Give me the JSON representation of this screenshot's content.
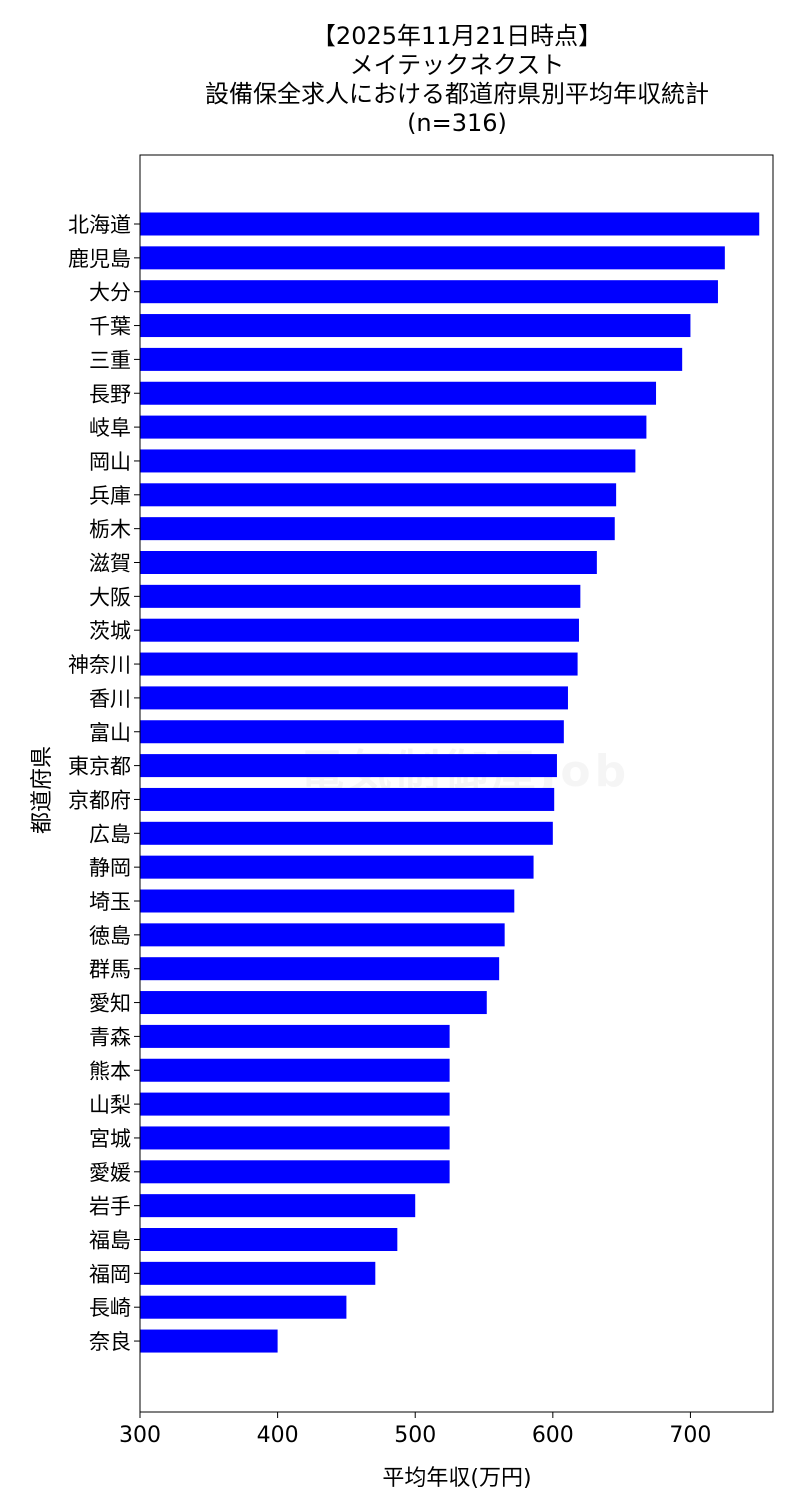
{
  "title_lines": [
    "【2025年11月21日時点】",
    "メイテックネクスト",
    "設備保全求人における都道府県別平均年収統計",
    "(n=316)"
  ],
  "watermark": "電気制御屋Job",
  "colors": {
    "bar": "#0000ff",
    "axis": "#000000",
    "background": "#ffffff"
  },
  "chart_data": {
    "type": "bar",
    "orientation": "horizontal",
    "title": "【2025年11月21日時点】 メイテックネクスト 設備保全求人における都道府県別平均年収統計 (n=316)",
    "xlabel": "平均年収(万円)",
    "ylabel": "都道府県",
    "xlim": [
      300,
      760
    ],
    "xticks": [
      300,
      400,
      500,
      600,
      700
    ],
    "grid": false,
    "categories": [
      "北海道",
      "鹿児島",
      "大分",
      "千葉",
      "三重",
      "長野",
      "岐阜",
      "岡山",
      "兵庫",
      "栃木",
      "滋賀",
      "大阪",
      "茨城",
      "神奈川",
      "香川",
      "富山",
      "東京都",
      "京都府",
      "広島",
      "静岡",
      "埼玉",
      "徳島",
      "群馬",
      "愛知",
      "青森",
      "熊本",
      "山梨",
      "宮城",
      "愛媛",
      "岩手",
      "福島",
      "福岡",
      "長崎",
      "奈良"
    ],
    "values": [
      750,
      725,
      720,
      700,
      694,
      675,
      668,
      660,
      646,
      645,
      632,
      620,
      619,
      618,
      611,
      608,
      603,
      601,
      600,
      586,
      572,
      565,
      561,
      552,
      525,
      525,
      525,
      525,
      525,
      500,
      487,
      471,
      450,
      400
    ]
  }
}
